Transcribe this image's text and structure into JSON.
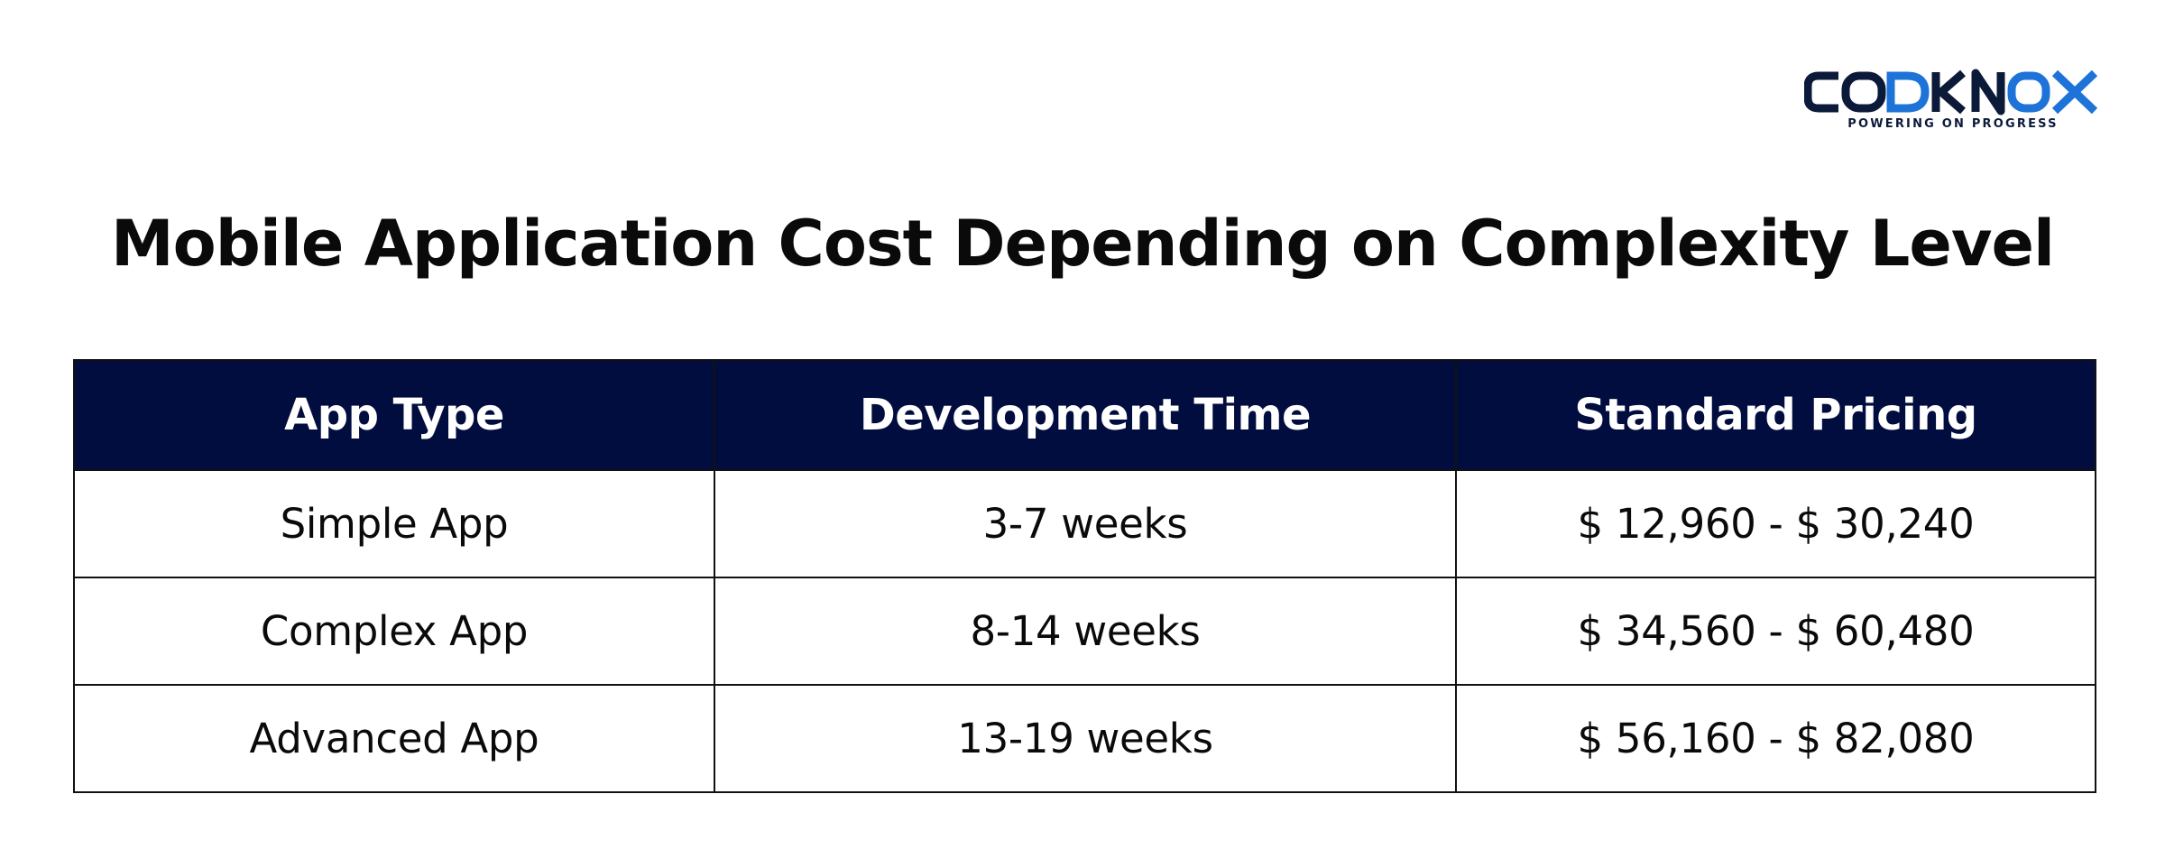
{
  "brand": {
    "logo_text": "CODKNOX",
    "tagline": "POWERING ON PROGRESS",
    "colors": {
      "dark": "#0c1a3a",
      "accent": "#1e73d8"
    }
  },
  "title": "Mobile Application Cost Depending on Complexity Level",
  "table": {
    "header_color": "#020d3f",
    "headers": [
      "App Type",
      "Development Time",
      "Standard Pricing"
    ],
    "rows": [
      [
        "Simple App",
        "3-7 weeks",
        "$ 12,960 - $ 30,240"
      ],
      [
        "Complex App",
        "8-14 weeks",
        "$ 34,560 - $ 60,480"
      ],
      [
        "Advanced App",
        "13-19 weeks",
        "$ 56,160 - $ 82,080"
      ]
    ]
  }
}
